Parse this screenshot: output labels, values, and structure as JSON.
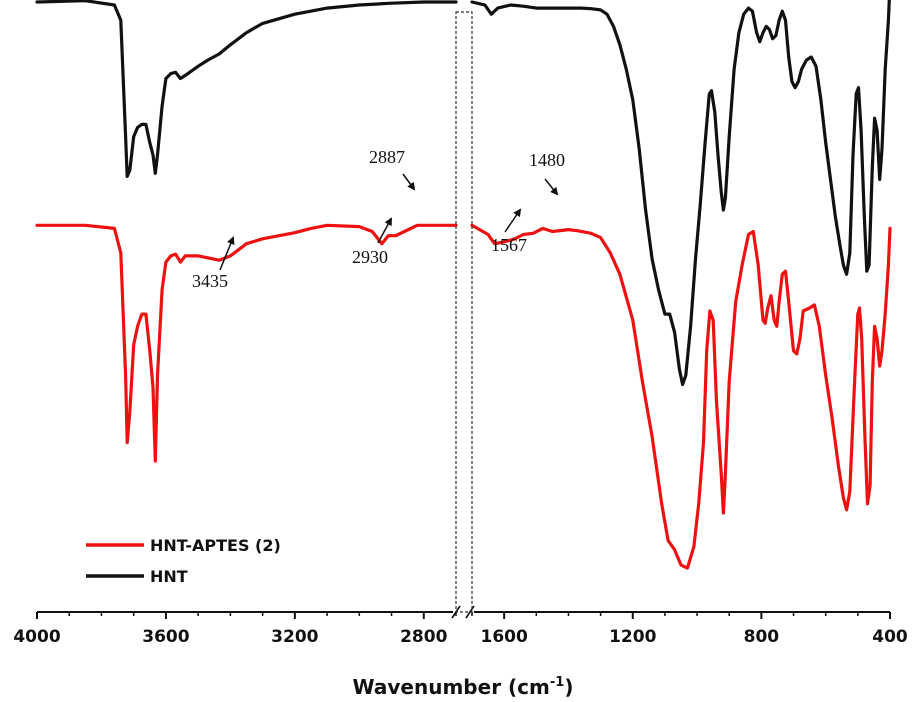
{
  "chart_data": {
    "type": "line",
    "title": "",
    "xlabel": "Wavenumber (cm",
    "xlabel_sup": "-1",
    "xlabel_end": ")",
    "ylabel": "",
    "axis_break": true,
    "x_segments": [
      {
        "xlim": [
          4000,
          2700
        ],
        "ticks": [
          4000,
          3600,
          3200,
          2800
        ]
      },
      {
        "xlim": [
          1700,
          400
        ],
        "ticks": [
          1600,
          1200,
          800,
          400
        ]
      }
    ],
    "tick_labels": [
      "4000",
      "3600",
      "3200",
      "2800",
      "1600",
      "1200",
      "800",
      "400"
    ],
    "legend": {
      "placement": "bottom-left"
    },
    "series": [
      {
        "name": "HNT-APTES (2)",
        "color": "#ee1111",
        "points": [
          [
            4000,
            0.305
          ],
          [
            3850,
            0.305
          ],
          [
            3760,
            0.3
          ],
          [
            3740,
            0.26
          ],
          [
            3725,
            0.06
          ],
          [
            3720,
            -0.05
          ],
          [
            3712,
            0.0
          ],
          [
            3700,
            0.11
          ],
          [
            3688,
            0.14
          ],
          [
            3675,
            0.16
          ],
          [
            3662,
            0.16
          ],
          [
            3650,
            0.1
          ],
          [
            3640,
            0.04
          ],
          [
            3633,
            -0.08
          ],
          [
            3626,
            0.06
          ],
          [
            3612,
            0.2
          ],
          [
            3600,
            0.245
          ],
          [
            3585,
            0.255
          ],
          [
            3570,
            0.258
          ],
          [
            3555,
            0.245
          ],
          [
            3540,
            0.255
          ],
          [
            3500,
            0.255
          ],
          [
            3470,
            0.252
          ],
          [
            3435,
            0.248
          ],
          [
            3400,
            0.255
          ],
          [
            3350,
            0.275
          ],
          [
            3300,
            0.283
          ],
          [
            3200,
            0.293
          ],
          [
            3150,
            0.3
          ],
          [
            3100,
            0.305
          ],
          [
            3000,
            0.303
          ],
          [
            2960,
            0.295
          ],
          [
            2930,
            0.275
          ],
          [
            2910,
            0.288
          ],
          [
            2887,
            0.288
          ],
          [
            2860,
            0.295
          ],
          [
            2820,
            0.305
          ],
          [
            2700,
            0.305
          ],
          [
            1700,
            0.305
          ],
          [
            1650,
            0.29
          ],
          [
            1630,
            0.275
          ],
          [
            1600,
            0.278
          ],
          [
            1567,
            0.283
          ],
          [
            1540,
            0.29
          ],
          [
            1510,
            0.292
          ],
          [
            1480,
            0.3
          ],
          [
            1450,
            0.295
          ],
          [
            1400,
            0.298
          ],
          [
            1370,
            0.296
          ],
          [
            1330,
            0.292
          ],
          [
            1300,
            0.285
          ],
          [
            1270,
            0.26
          ],
          [
            1240,
            0.225
          ],
          [
            1200,
            0.15
          ],
          [
            1170,
            0.05
          ],
          [
            1140,
            -0.04
          ],
          [
            1110,
            -0.15
          ],
          [
            1090,
            -0.21
          ],
          [
            1070,
            -0.225
          ],
          [
            1050,
            -0.25
          ],
          [
            1030,
            -0.255
          ],
          [
            1010,
            -0.22
          ],
          [
            995,
            -0.15
          ],
          [
            980,
            -0.05
          ],
          [
            970,
            0.1
          ],
          [
            960,
            0.165
          ],
          [
            950,
            0.15
          ],
          [
            940,
            0.02
          ],
          [
            925,
            -0.1
          ],
          [
            918,
            -0.165
          ],
          [
            912,
            -0.1
          ],
          [
            900,
            0.05
          ],
          [
            880,
            0.18
          ],
          [
            860,
            0.24
          ],
          [
            840,
            0.29
          ],
          [
            825,
            0.295
          ],
          [
            810,
            0.24
          ],
          [
            795,
            0.15
          ],
          [
            788,
            0.145
          ],
          [
            780,
            0.17
          ],
          [
            770,
            0.19
          ],
          [
            760,
            0.15
          ],
          [
            752,
            0.14
          ],
          [
            745,
            0.18
          ],
          [
            735,
            0.225
          ],
          [
            725,
            0.23
          ],
          [
            715,
            0.18
          ],
          [
            700,
            0.1
          ],
          [
            690,
            0.095
          ],
          [
            680,
            0.12
          ],
          [
            670,
            0.165
          ],
          [
            650,
            0.17
          ],
          [
            635,
            0.175
          ],
          [
            620,
            0.14
          ],
          [
            600,
            0.06
          ],
          [
            580,
            -0.01
          ],
          [
            560,
            -0.09
          ],
          [
            545,
            -0.14
          ],
          [
            535,
            -0.16
          ],
          [
            525,
            -0.13
          ],
          [
            510,
            0.05
          ],
          [
            500,
            0.16
          ],
          [
            495,
            0.17
          ],
          [
            488,
            0.12
          ],
          [
            478,
            -0.04
          ],
          [
            470,
            -0.15
          ],
          [
            462,
            -0.12
          ],
          [
            455,
            0.05
          ],
          [
            448,
            0.14
          ],
          [
            440,
            0.12
          ],
          [
            432,
            0.075
          ],
          [
            425,
            0.1
          ],
          [
            415,
            0.16
          ],
          [
            405,
            0.24
          ],
          [
            400,
            0.3
          ]
        ]
      },
      {
        "name": "HNT",
        "color": "#111111",
        "points": [
          [
            4000,
            0.67
          ],
          [
            3850,
            0.672
          ],
          [
            3760,
            0.665
          ],
          [
            3740,
            0.64
          ],
          [
            3725,
            0.45
          ],
          [
            3720,
            0.385
          ],
          [
            3712,
            0.395
          ],
          [
            3700,
            0.45
          ],
          [
            3688,
            0.465
          ],
          [
            3675,
            0.47
          ],
          [
            3662,
            0.47
          ],
          [
            3650,
            0.44
          ],
          [
            3640,
            0.42
          ],
          [
            3633,
            0.39
          ],
          [
            3626,
            0.42
          ],
          [
            3612,
            0.5
          ],
          [
            3600,
            0.545
          ],
          [
            3585,
            0.553
          ],
          [
            3570,
            0.555
          ],
          [
            3555,
            0.545
          ],
          [
            3540,
            0.55
          ],
          [
            3500,
            0.565
          ],
          [
            3470,
            0.575
          ],
          [
            3435,
            0.585
          ],
          [
            3400,
            0.6
          ],
          [
            3350,
            0.62
          ],
          [
            3300,
            0.635
          ],
          [
            3200,
            0.65
          ],
          [
            3100,
            0.66
          ],
          [
            3000,
            0.665
          ],
          [
            2900,
            0.668
          ],
          [
            2800,
            0.67
          ],
          [
            2700,
            0.67
          ],
          [
            1700,
            0.67
          ],
          [
            1660,
            0.665
          ],
          [
            1640,
            0.65
          ],
          [
            1620,
            0.66
          ],
          [
            1580,
            0.665
          ],
          [
            1540,
            0.663
          ],
          [
            1500,
            0.66
          ],
          [
            1450,
            0.66
          ],
          [
            1400,
            0.66
          ],
          [
            1360,
            0.66
          ],
          [
            1330,
            0.659
          ],
          [
            1300,
            0.657
          ],
          [
            1280,
            0.65
          ],
          [
            1260,
            0.63
          ],
          [
            1240,
            0.6
          ],
          [
            1220,
            0.56
          ],
          [
            1200,
            0.51
          ],
          [
            1180,
            0.43
          ],
          [
            1160,
            0.33
          ],
          [
            1140,
            0.25
          ],
          [
            1120,
            0.2
          ],
          [
            1100,
            0.16
          ],
          [
            1085,
            0.16
          ],
          [
            1070,
            0.13
          ],
          [
            1055,
            0.07
          ],
          [
            1045,
            0.045
          ],
          [
            1035,
            0.06
          ],
          [
            1020,
            0.14
          ],
          [
            1005,
            0.25
          ],
          [
            990,
            0.34
          ],
          [
            975,
            0.44
          ],
          [
            962,
            0.52
          ],
          [
            955,
            0.525
          ],
          [
            945,
            0.49
          ],
          [
            935,
            0.42
          ],
          [
            925,
            0.36
          ],
          [
            918,
            0.33
          ],
          [
            912,
            0.35
          ],
          [
            900,
            0.45
          ],
          [
            885,
            0.56
          ],
          [
            870,
            0.62
          ],
          [
            855,
            0.65
          ],
          [
            840,
            0.66
          ],
          [
            828,
            0.655
          ],
          [
            815,
            0.62
          ],
          [
            805,
            0.605
          ],
          [
            795,
            0.62
          ],
          [
            785,
            0.63
          ],
          [
            775,
            0.625
          ],
          [
            765,
            0.61
          ],
          [
            755,
            0.615
          ],
          [
            745,
            0.64
          ],
          [
            735,
            0.655
          ],
          [
            725,
            0.64
          ],
          [
            715,
            0.58
          ],
          [
            705,
            0.54
          ],
          [
            695,
            0.53
          ],
          [
            685,
            0.54
          ],
          [
            675,
            0.56
          ],
          [
            660,
            0.575
          ],
          [
            645,
            0.58
          ],
          [
            630,
            0.565
          ],
          [
            615,
            0.51
          ],
          [
            600,
            0.44
          ],
          [
            585,
            0.38
          ],
          [
            570,
            0.32
          ],
          [
            555,
            0.27
          ],
          [
            545,
            0.24
          ],
          [
            535,
            0.225
          ],
          [
            525,
            0.26
          ],
          [
            515,
            0.42
          ],
          [
            505,
            0.52
          ],
          [
            498,
            0.53
          ],
          [
            490,
            0.46
          ],
          [
            480,
            0.32
          ],
          [
            472,
            0.23
          ],
          [
            465,
            0.24
          ],
          [
            455,
            0.4
          ],
          [
            448,
            0.48
          ],
          [
            440,
            0.46
          ],
          [
            432,
            0.38
          ],
          [
            425,
            0.43
          ],
          [
            415,
            0.56
          ],
          [
            405,
            0.64
          ],
          [
            400,
            0.7
          ]
        ]
      }
    ],
    "annotations": [
      {
        "text": "3435"
      },
      {
        "text": "2930"
      },
      {
        "text": "2887"
      },
      {
        "text": "1567"
      },
      {
        "text": "1480"
      }
    ]
  }
}
